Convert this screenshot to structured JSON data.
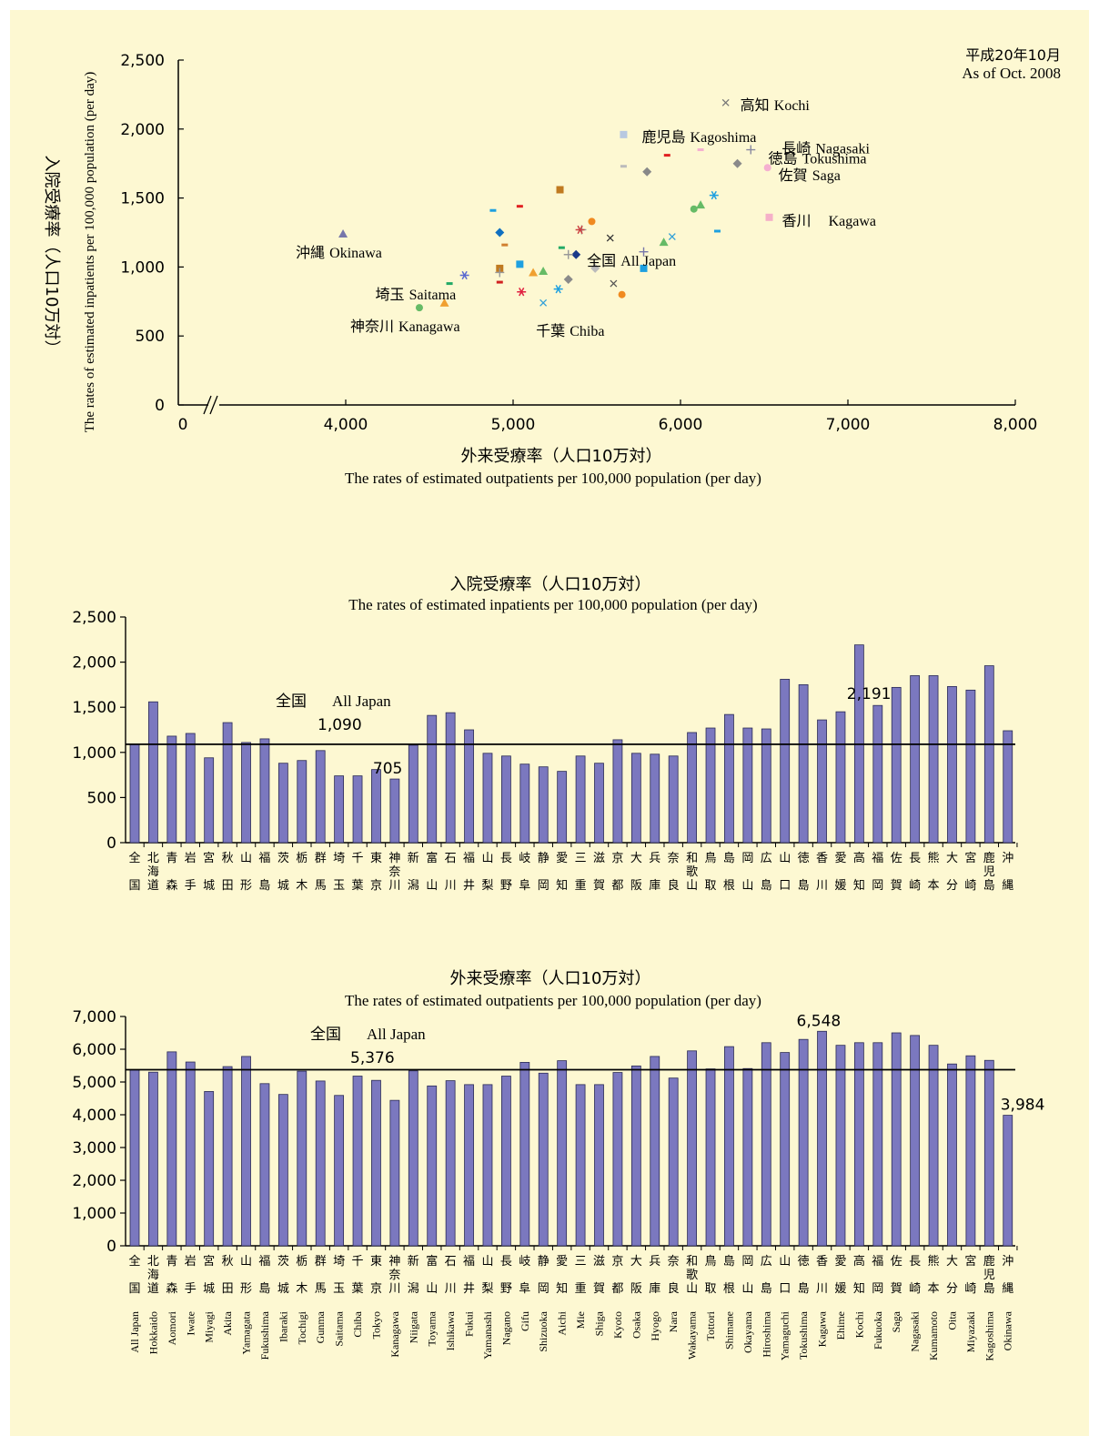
{
  "date_jp": "平成20年10月",
  "date_en": "As of Oct. 2008",
  "chart_data": [
    {
      "type": "scatter",
      "xlabel_jp": "外来受療率（人口10万対）",
      "xlabel_en": "The rates of estimated outpatients per 100,000 population (per day)",
      "ylabel_jp": "入院受療率（人口10万対）",
      "ylabel_en": "The rates of estimated inpatients per 100,000 population (per day)",
      "xlim": [
        3000,
        8000
      ],
      "ylim": [
        0,
        2500
      ],
      "x_axis_break": true,
      "x_ticks": [
        "0",
        "4,000",
        "5,000",
        "6,000",
        "7,000",
        "8,000"
      ],
      "x_tick_values": [
        null,
        4000,
        5000,
        6000,
        7000,
        8000
      ],
      "y_ticks": [
        "0",
        "500",
        "1,000",
        "1,500",
        "2,000",
        "2,500"
      ],
      "y_tick_values": [
        0,
        500,
        1000,
        1500,
        2000,
        2500
      ],
      "points": [
        {
          "x": 5376,
          "y": 1090,
          "marker": "diamond",
          "color": "#1a3a8a"
        },
        {
          "x": 5280,
          "y": 1560,
          "marker": "square",
          "color": "#c07a20"
        },
        {
          "x": 5900,
          "y": 1180,
          "marker": "triangle",
          "color": "#66bb66"
        },
        {
          "x": 5580,
          "y": 1210,
          "marker": "x",
          "color": "#333333"
        },
        {
          "x": 4710,
          "y": 940,
          "marker": "asterisk",
          "color": "#5a6ad0"
        },
        {
          "x": 5470,
          "y": 1330,
          "marker": "circle",
          "color": "#f08a20"
        },
        {
          "x": 5780,
          "y": 1110,
          "marker": "plus",
          "color": "#7777aa"
        },
        {
          "x": 4950,
          "y": 1160,
          "marker": "dash",
          "color": "#d08030"
        },
        {
          "x": 4620,
          "y": 880,
          "marker": "dash",
          "color": "#22aa66"
        },
        {
          "x": 5330,
          "y": 910,
          "marker": "diamond",
          "color": "#8a8a8a"
        },
        {
          "x": 5040,
          "y": 1020,
          "marker": "square",
          "color": "#1ea0e0"
        },
        {
          "x": 4590,
          "y": 740,
          "marker": "triangle",
          "color": "#f0a030"
        },
        {
          "x": 5180,
          "y": 740,
          "marker": "x",
          "color": "#30a0d8"
        },
        {
          "x": 5050,
          "y": 820,
          "marker": "asterisk",
          "color": "#e02040"
        },
        {
          "x": 4440,
          "y": 705,
          "marker": "circle",
          "color": "#66bb66"
        },
        {
          "x": 5330,
          "y": 1090,
          "marker": "plus",
          "color": "#999999"
        },
        {
          "x": 4880,
          "y": 1410,
          "marker": "dash",
          "color": "#1ea0e0"
        },
        {
          "x": 5040,
          "y": 1440,
          "marker": "dash",
          "color": "#e02020"
        },
        {
          "x": 4920,
          "y": 1250,
          "marker": "diamond",
          "color": "#1070c0"
        },
        {
          "x": 4920,
          "y": 990,
          "marker": "square",
          "color": "#c07a20"
        },
        {
          "x": 5180,
          "y": 970,
          "marker": "triangle",
          "color": "#66bb66"
        },
        {
          "x": 5600,
          "y": 880,
          "marker": "x",
          "color": "#555555"
        },
        {
          "x": 5270,
          "y": 840,
          "marker": "asterisk",
          "color": "#1ea0e0"
        },
        {
          "x": 5650,
          "y": 800,
          "marker": "circle",
          "color": "#f08a20"
        },
        {
          "x": 4920,
          "y": 960,
          "marker": "plus",
          "color": "#999999"
        },
        {
          "x": 4920,
          "y": 890,
          "marker": "dash",
          "color": "#d02020"
        },
        {
          "x": 5290,
          "y": 1140,
          "marker": "dash",
          "color": "#22aa66"
        },
        {
          "x": 5490,
          "y": 990,
          "marker": "diamond",
          "color": "#bbbbbb"
        },
        {
          "x": 5780,
          "y": 990,
          "marker": "square",
          "color": "#1ea0e0"
        },
        {
          "x": 5120,
          "y": 960,
          "marker": "triangle",
          "color": "#f0a030"
        },
        {
          "x": 5950,
          "y": 1220,
          "marker": "x",
          "color": "#30a0d8"
        },
        {
          "x": 6200,
          "y": 1520,
          "marker": "asterisk",
          "color": "#1ea0e0"
        },
        {
          "x": 6080,
          "y": 1420,
          "marker": "circle",
          "color": "#66bb66"
        },
        {
          "x": 5410,
          "y": 1270,
          "marker": "plus",
          "color": "#999999"
        },
        {
          "x": 5660,
          "y": 1730,
          "marker": "dash",
          "color": "#bbbbbb"
        },
        {
          "x": 5920,
          "y": 1810,
          "marker": "dash",
          "color": "#e02020"
        },
        {
          "x": 5800,
          "y": 1690,
          "marker": "diamond",
          "color": "#888888"
        },
        {
          "x": 6530,
          "y": 1360,
          "marker": "square",
          "color": "#f5b0c8"
        },
        {
          "x": 6120,
          "y": 1450,
          "marker": "triangle",
          "color": "#66bb66"
        },
        {
          "x": 6270,
          "y": 2191,
          "marker": "x",
          "color": "#777777"
        },
        {
          "x": 5400,
          "y": 1270,
          "marker": "asterisk",
          "color": "#cc4444"
        },
        {
          "x": 6520,
          "y": 1720,
          "marker": "circle",
          "color": "#f5b0d0"
        },
        {
          "x": 6420,
          "y": 1850,
          "marker": "plus",
          "color": "#8a8aa0"
        },
        {
          "x": 6120,
          "y": 1850,
          "marker": "dash",
          "color": "#f5b0d0"
        },
        {
          "x": 6220,
          "y": 1260,
          "marker": "dash",
          "color": "#1ea0e0"
        },
        {
          "x": 6340,
          "y": 1750,
          "marker": "diamond",
          "color": "#8a8a8a"
        },
        {
          "x": 5660,
          "y": 1960,
          "marker": "square",
          "color": "#b8c8e0"
        },
        {
          "x": 3984,
          "y": 1240,
          "marker": "triangle",
          "color": "#7777aa"
        }
      ],
      "annotations": [
        {
          "text": "高知 Kochi",
          "x": 6270,
          "y": 2191
        },
        {
          "text": "鹿児島 Kagoshima",
          "x": 5660,
          "y": 1960
        },
        {
          "text": "長崎 Nagasaki",
          "x": 6420,
          "y": 1850
        },
        {
          "text": "徳島 Tokushima",
          "x": 6340,
          "y": 1750
        },
        {
          "text": "佐賀 Saga",
          "x": 6520,
          "y": 1720
        },
        {
          "text": "香川　Kagawa",
          "x": 6530,
          "y": 1360
        },
        {
          "text": "沖縄 Okinawa",
          "x": 3984,
          "y": 1240
        },
        {
          "text": "全国 All Japan",
          "x": 5376,
          "y": 1090
        },
        {
          "text": "埼玉 Saitama",
          "x": 4590,
          "y": 740
        },
        {
          "text": "神奈川 Kanagawa",
          "x": 4440,
          "y": 705
        },
        {
          "text": "千葉 Chiba",
          "x": 5180,
          "y": 740
        }
      ]
    },
    {
      "type": "bar",
      "title_jp": "入院受療率（人口10万対）",
      "title_en": "The rates of estimated  inpatients per 100,000 population (per day)",
      "ylim": [
        0,
        2500
      ],
      "y_ticks": [
        "0",
        "500",
        "1,000",
        "1,500",
        "2,000",
        "2,500"
      ],
      "y_tick_values": [
        0,
        500,
        1000,
        1500,
        2000,
        2500
      ],
      "reference_line": {
        "value": 1090,
        "label_jp": "全国",
        "label_en": "All Japan",
        "value_label": "1,090"
      },
      "value_labels": [
        {
          "index": 14,
          "text": "705"
        },
        {
          "index": 40,
          "text": "2,191"
        }
      ],
      "values": [
        1090,
        1560,
        1180,
        1210,
        940,
        1330,
        1110,
        1150,
        880,
        910,
        1020,
        740,
        740,
        810,
        705,
        1080,
        1410,
        1440,
        1250,
        990,
        960,
        870,
        840,
        790,
        960,
        880,
        1140,
        990,
        980,
        960,
        1220,
        1270,
        1420,
        1270,
        1260,
        1810,
        1750,
        1360,
        1450,
        2191,
        1520,
        1720,
        1850,
        1850,
        1730,
        1690,
        1960,
        1240
      ]
    },
    {
      "type": "bar",
      "title_jp": "外来受療率（人口10万対）",
      "title_en": "The rates of estimated outpatients per 100,000 population (per day)",
      "ylim": [
        0,
        7000
      ],
      "y_ticks": [
        "0",
        "1,000",
        "2,000",
        "3,000",
        "4,000",
        "5,000",
        "6,000",
        "7,000"
      ],
      "y_tick_values": [
        0,
        1000,
        2000,
        3000,
        4000,
        5000,
        6000,
        7000
      ],
      "reference_line": {
        "value": 5376,
        "label_jp": "全国",
        "label_en": "All Japan",
        "value_label": "5,376"
      },
      "value_labels": [
        {
          "index": 37,
          "text": "6,548"
        },
        {
          "index": 47,
          "text": "3,984"
        }
      ],
      "values": [
        5376,
        5300,
        5920,
        5610,
        4710,
        5470,
        5780,
        4950,
        4620,
        5330,
        5030,
        4590,
        5180,
        5050,
        4440,
        5340,
        4880,
        5040,
        4920,
        4920,
        5180,
        5600,
        5270,
        5650,
        4920,
        4920,
        5290,
        5490,
        5780,
        5120,
        5950,
        5400,
        6080,
        5410,
        6200,
        5900,
        6300,
        6548,
        6120,
        6200,
        6200,
        6500,
        6420,
        6120,
        5550,
        5800,
        5660,
        3984
      ]
    }
  ],
  "prefectures": [
    {
      "jp": "全国",
      "en": "All Japan"
    },
    {
      "jp": "北海道",
      "en": "Hokkaido"
    },
    {
      "jp": "青森",
      "en": "Aomori"
    },
    {
      "jp": "岩手",
      "en": "Iwate"
    },
    {
      "jp": "宮城",
      "en": "Miyagi"
    },
    {
      "jp": "秋田",
      "en": "Akita"
    },
    {
      "jp": "山形",
      "en": "Yamagata"
    },
    {
      "jp": "福島",
      "en": "Fukushima"
    },
    {
      "jp": "茨城",
      "en": "Ibaraki"
    },
    {
      "jp": "栃木",
      "en": "Tochigi"
    },
    {
      "jp": "群馬",
      "en": "Gunma"
    },
    {
      "jp": "埼玉",
      "en": "Saitama"
    },
    {
      "jp": "千葉",
      "en": "Chiba"
    },
    {
      "jp": "東京",
      "en": "Tokyo"
    },
    {
      "jp": "神奈川",
      "en": "Kanagawa"
    },
    {
      "jp": "新潟",
      "en": "Niigata"
    },
    {
      "jp": "富山",
      "en": "Toyama"
    },
    {
      "jp": "石川",
      "en": "Ishikawa"
    },
    {
      "jp": "福井",
      "en": "Fukui"
    },
    {
      "jp": "山梨",
      "en": "Yamanashi"
    },
    {
      "jp": "長野",
      "en": "Nagano"
    },
    {
      "jp": "岐阜",
      "en": "Gifu"
    },
    {
      "jp": "静岡",
      "en": "Shizuoka"
    },
    {
      "jp": "愛知",
      "en": "Aichi"
    },
    {
      "jp": "三重",
      "en": "Mie"
    },
    {
      "jp": "滋賀",
      "en": "Shiga"
    },
    {
      "jp": "京都",
      "en": "Kyoto"
    },
    {
      "jp": "大阪",
      "en": "Osaka"
    },
    {
      "jp": "兵庫",
      "en": "Hyogo"
    },
    {
      "jp": "奈良",
      "en": "Nara"
    },
    {
      "jp": "和歌山",
      "en": "Wakayama"
    },
    {
      "jp": "鳥取",
      "en": "Tottori"
    },
    {
      "jp": "島根",
      "en": "Shimane"
    },
    {
      "jp": "岡山",
      "en": "Okayama"
    },
    {
      "jp": "広島",
      "en": "Hiroshima"
    },
    {
      "jp": "山口",
      "en": "Yamaguchi"
    },
    {
      "jp": "徳島",
      "en": "Tokushima"
    },
    {
      "jp": "香川",
      "en": "Kagawa"
    },
    {
      "jp": "愛媛",
      "en": "Ehime"
    },
    {
      "jp": "高知",
      "en": "Kochi"
    },
    {
      "jp": "福岡",
      "en": "Fukuoka"
    },
    {
      "jp": "佐賀",
      "en": "Saga"
    },
    {
      "jp": "長崎",
      "en": "Nagasaki"
    },
    {
      "jp": "熊本",
      "en": "Kumamoto"
    },
    {
      "jp": "大分",
      "en": "Oita"
    },
    {
      "jp": "宮崎",
      "en": "Miyazaki"
    },
    {
      "jp": "鹿児島",
      "en": "Kagoshima"
    },
    {
      "jp": "沖縄",
      "en": "Okinawa"
    }
  ],
  "colors": {
    "bar": "#7b78bf",
    "bar_stroke": "#2a2a55",
    "panel": "#fdf8d2",
    "axis": "#000000"
  }
}
